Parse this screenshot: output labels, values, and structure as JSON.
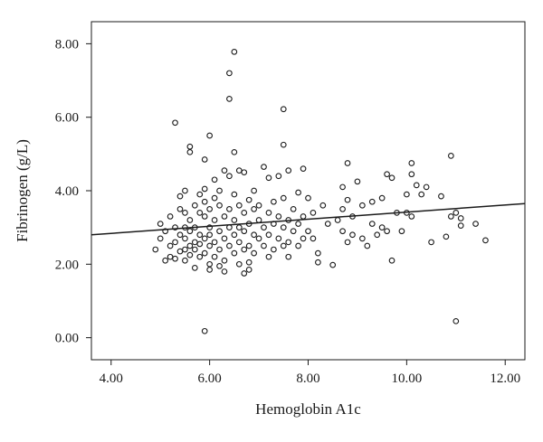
{
  "chart_data": {
    "type": "scatter",
    "xlabel": "Hemoglobin A1c",
    "ylabel": "Fibrinogen (g/L)",
    "xlim": [
      3.6,
      12.4
    ],
    "ylim": [
      -0.6,
      8.6
    ],
    "x_ticks": [
      4.0,
      6.0,
      8.0,
      10.0,
      12.0
    ],
    "y_ticks": [
      0.0,
      2.0,
      4.0,
      6.0,
      8.0
    ],
    "x_tick_labels": [
      "4.00",
      "6.00",
      "8.00",
      "10.00",
      "12.00"
    ],
    "y_tick_labels": [
      "0.00",
      "2.00",
      "4.00",
      "6.00",
      "8.00"
    ],
    "grid": false,
    "legend": "none",
    "marker": "open-circle",
    "colors": {
      "marker": "#1a1a1a",
      "axis": "#1a1a1a",
      "fit_line": "#1a1a1a"
    },
    "fit_line": {
      "x": [
        3.6,
        12.4
      ],
      "y": [
        2.8,
        3.65
      ]
    },
    "points": [
      [
        4.9,
        2.4
      ],
      [
        5.0,
        2.7
      ],
      [
        5.0,
        3.1
      ],
      [
        5.1,
        2.1
      ],
      [
        5.1,
        2.9
      ],
      [
        5.2,
        2.5
      ],
      [
        5.2,
        3.3
      ],
      [
        5.2,
        2.2
      ],
      [
        5.3,
        5.85
      ],
      [
        5.3,
        2.6
      ],
      [
        5.3,
        3.0
      ],
      [
        5.3,
        2.15
      ],
      [
        5.4,
        3.5
      ],
      [
        5.4,
        2.8
      ],
      [
        5.4,
        2.35
      ],
      [
        5.4,
        3.85
      ],
      [
        5.5,
        2.4
      ],
      [
        5.5,
        3.0
      ],
      [
        5.5,
        2.7
      ],
      [
        5.5,
        3.4
      ],
      [
        5.5,
        2.1
      ],
      [
        5.5,
        4.0
      ],
      [
        5.6,
        5.2
      ],
      [
        5.6,
        5.05
      ],
      [
        5.6,
        2.5
      ],
      [
        5.6,
        3.2
      ],
      [
        5.6,
        2.9
      ],
      [
        5.6,
        2.25
      ],
      [
        5.7,
        3.6
      ],
      [
        5.7,
        2.6
      ],
      [
        5.7,
        1.9
      ],
      [
        5.7,
        3.0
      ],
      [
        5.7,
        2.4
      ],
      [
        5.8,
        3.4
      ],
      [
        5.8,
        2.8
      ],
      [
        5.8,
        2.2
      ],
      [
        5.8,
        3.9
      ],
      [
        5.8,
        2.55
      ],
      [
        5.9,
        4.85
      ],
      [
        5.9,
        4.05
      ],
      [
        5.9,
        3.3
      ],
      [
        5.9,
        2.7
      ],
      [
        5.9,
        2.3
      ],
      [
        5.9,
        0.18
      ],
      [
        5.9,
        3.7
      ],
      [
        6.0,
        5.5
      ],
      [
        6.0,
        3.0
      ],
      [
        6.0,
        2.5
      ],
      [
        6.0,
        3.5
      ],
      [
        6.0,
        2.0
      ],
      [
        6.0,
        1.85
      ],
      [
        6.0,
        2.8
      ],
      [
        6.1,
        4.3
      ],
      [
        6.1,
        3.8
      ],
      [
        6.1,
        2.6
      ],
      [
        6.1,
        3.2
      ],
      [
        6.1,
        2.2
      ],
      [
        6.2,
        3.6
      ],
      [
        6.2,
        2.9
      ],
      [
        6.2,
        2.4
      ],
      [
        6.2,
        4.0
      ],
      [
        6.2,
        1.95
      ],
      [
        6.3,
        4.55
      ],
      [
        6.3,
        3.3
      ],
      [
        6.3,
        2.7
      ],
      [
        6.3,
        2.1
      ],
      [
        6.3,
        1.8
      ],
      [
        6.4,
        7.2
      ],
      [
        6.4,
        6.5
      ],
      [
        6.4,
        4.4
      ],
      [
        6.4,
        3.5
      ],
      [
        6.4,
        2.5
      ],
      [
        6.4,
        3.0
      ],
      [
        6.5,
        7.78
      ],
      [
        6.5,
        5.05
      ],
      [
        6.5,
        3.9
      ],
      [
        6.5,
        2.8
      ],
      [
        6.5,
        2.3
      ],
      [
        6.5,
        3.2
      ],
      [
        6.6,
        4.55
      ],
      [
        6.6,
        3.6
      ],
      [
        6.6,
        2.6
      ],
      [
        6.6,
        2.0
      ],
      [
        6.6,
        3.0
      ],
      [
        6.7,
        4.5
      ],
      [
        6.7,
        3.4
      ],
      [
        6.7,
        2.9
      ],
      [
        6.7,
        2.4
      ],
      [
        6.7,
        1.75
      ],
      [
        6.8,
        3.75
      ],
      [
        6.8,
        3.1
      ],
      [
        6.8,
        2.5
      ],
      [
        6.8,
        1.85
      ],
      [
        6.8,
        2.05
      ],
      [
        6.9,
        3.5
      ],
      [
        6.9,
        2.8
      ],
      [
        6.9,
        2.3
      ],
      [
        6.9,
        4.0
      ],
      [
        7.0,
        3.2
      ],
      [
        7.0,
        2.7
      ],
      [
        7.0,
        3.6
      ],
      [
        7.1,
        4.65
      ],
      [
        7.1,
        3.0
      ],
      [
        7.1,
        2.5
      ],
      [
        7.2,
        4.35
      ],
      [
        7.2,
        3.4
      ],
      [
        7.2,
        2.8
      ],
      [
        7.2,
        2.2
      ],
      [
        7.3,
        3.7
      ],
      [
        7.3,
        3.1
      ],
      [
        7.3,
        2.4
      ],
      [
        7.4,
        4.4
      ],
      [
        7.4,
        3.3
      ],
      [
        7.4,
        2.7
      ],
      [
        7.5,
        6.22
      ],
      [
        7.5,
        5.25
      ],
      [
        7.5,
        3.8
      ],
      [
        7.5,
        3.0
      ],
      [
        7.5,
        2.5
      ],
      [
        7.6,
        4.55
      ],
      [
        7.6,
        3.2
      ],
      [
        7.6,
        2.6
      ],
      [
        7.6,
        2.2
      ],
      [
        7.7,
        3.5
      ],
      [
        7.7,
        2.9
      ],
      [
        7.8,
        3.95
      ],
      [
        7.8,
        3.1
      ],
      [
        7.8,
        2.5
      ],
      [
        7.9,
        4.6
      ],
      [
        7.9,
        3.3
      ],
      [
        7.9,
        2.7
      ],
      [
        8.0,
        3.8
      ],
      [
        8.0,
        2.9
      ],
      [
        8.1,
        3.4
      ],
      [
        8.1,
        2.7
      ],
      [
        8.2,
        2.3
      ],
      [
        8.2,
        2.05
      ],
      [
        8.3,
        3.6
      ],
      [
        8.4,
        3.1
      ],
      [
        8.5,
        1.98
      ],
      [
        8.6,
        3.2
      ],
      [
        8.7,
        4.1
      ],
      [
        8.7,
        3.5
      ],
      [
        8.7,
        2.9
      ],
      [
        8.8,
        4.75
      ],
      [
        8.8,
        3.75
      ],
      [
        8.8,
        2.6
      ],
      [
        8.9,
        2.8
      ],
      [
        8.9,
        3.3
      ],
      [
        9.0,
        4.25
      ],
      [
        9.1,
        3.6
      ],
      [
        9.1,
        2.7
      ],
      [
        9.2,
        2.5
      ],
      [
        9.3,
        3.7
      ],
      [
        9.3,
        3.1
      ],
      [
        9.4,
        2.8
      ],
      [
        9.5,
        3.8
      ],
      [
        9.5,
        3.0
      ],
      [
        9.6,
        4.45
      ],
      [
        9.6,
        2.9
      ],
      [
        9.7,
        4.35
      ],
      [
        9.7,
        2.1
      ],
      [
        9.8,
        3.4
      ],
      [
        9.9,
        2.9
      ],
      [
        10.0,
        3.9
      ],
      [
        10.0,
        3.4
      ],
      [
        10.1,
        4.75
      ],
      [
        10.1,
        4.45
      ],
      [
        10.1,
        3.3
      ],
      [
        10.2,
        4.15
      ],
      [
        10.3,
        3.9
      ],
      [
        10.4,
        4.1
      ],
      [
        10.5,
        2.6
      ],
      [
        10.7,
        3.85
      ],
      [
        10.8,
        2.75
      ],
      [
        10.9,
        4.95
      ],
      [
        10.9,
        3.3
      ],
      [
        11.0,
        3.4
      ],
      [
        11.0,
        0.45
      ],
      [
        11.1,
        3.25
      ],
      [
        11.1,
        3.05
      ],
      [
        11.4,
        3.1
      ],
      [
        11.6,
        2.65
      ]
    ]
  }
}
